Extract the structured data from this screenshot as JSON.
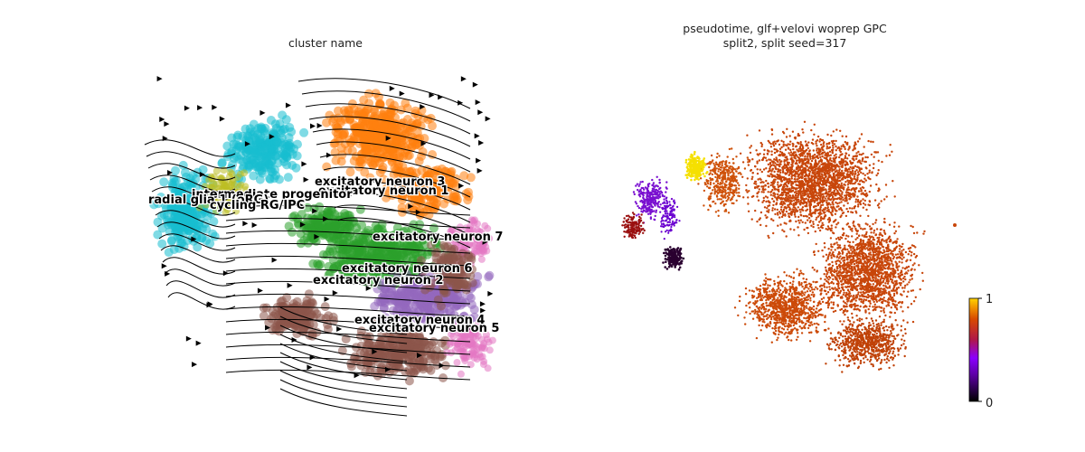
{
  "panels": {
    "left": {
      "title": "cluster name",
      "labels": [
        {
          "text": "excitatory neuron 3",
          "id": "excitatory-neuron-3"
        },
        {
          "text": "excitatory neuron 1",
          "id": "excitatory-neuron-1"
        },
        {
          "text": "intermediate progenitor",
          "id": "intermediate-progenitor"
        },
        {
          "text": "radial glia 1 (oRG)",
          "id": "radial-glia-1"
        },
        {
          "text": "cycling RG/IPC",
          "id": "cycling-rg-ipc"
        },
        {
          "text": "excitatory neuron 7",
          "id": "excitatory-neuron-7"
        },
        {
          "text": "excitatory neuron 6",
          "id": "excitatory-neuron-6"
        },
        {
          "text": "excitatory neuron 2",
          "id": "excitatory-neuron-2"
        },
        {
          "text": "excitatory neuron 4",
          "id": "excitatory-neuron-4"
        },
        {
          "text": "excitatory neuron 5",
          "id": "excitatory-neuron-5"
        }
      ],
      "colors": {
        "cyan": "#17becf",
        "orange": "#ff7f0e",
        "green": "#2ca02c",
        "purple": "#9467bd",
        "brown": "#8c564b",
        "pink": "#e377c2",
        "olive": "#bcbd22",
        "blue": "#1f77b4"
      }
    },
    "right": {
      "title_line1": "pseudotime, glf+velovi woprep GPC",
      "title_line2": "split2, split seed=317",
      "colorbar": {
        "min_label": "0",
        "max_label": "1",
        "min": 0,
        "max": 1,
        "cmap": "gnuplot"
      }
    }
  },
  "chart_data": [
    {
      "type": "scatter",
      "title": "cluster name",
      "categories": [
        "excitatory neuron 3",
        "excitatory neuron 1",
        "intermediate progenitor",
        "radial glia 1 (oRG)",
        "cycling RG/IPC",
        "excitatory neuron 7",
        "excitatory neuron 6",
        "excitatory neuron 2",
        "excitatory neuron 4",
        "excitatory neuron 5"
      ],
      "overlay": "velocity streamlines",
      "axes": "off"
    },
    {
      "type": "scatter",
      "title": "pseudotime, glf+velovi woprep GPC split2, split seed=317",
      "colorbar": {
        "range": [
          0,
          1
        ],
        "ticks": [
          0,
          1
        ]
      },
      "axes": "off"
    }
  ]
}
